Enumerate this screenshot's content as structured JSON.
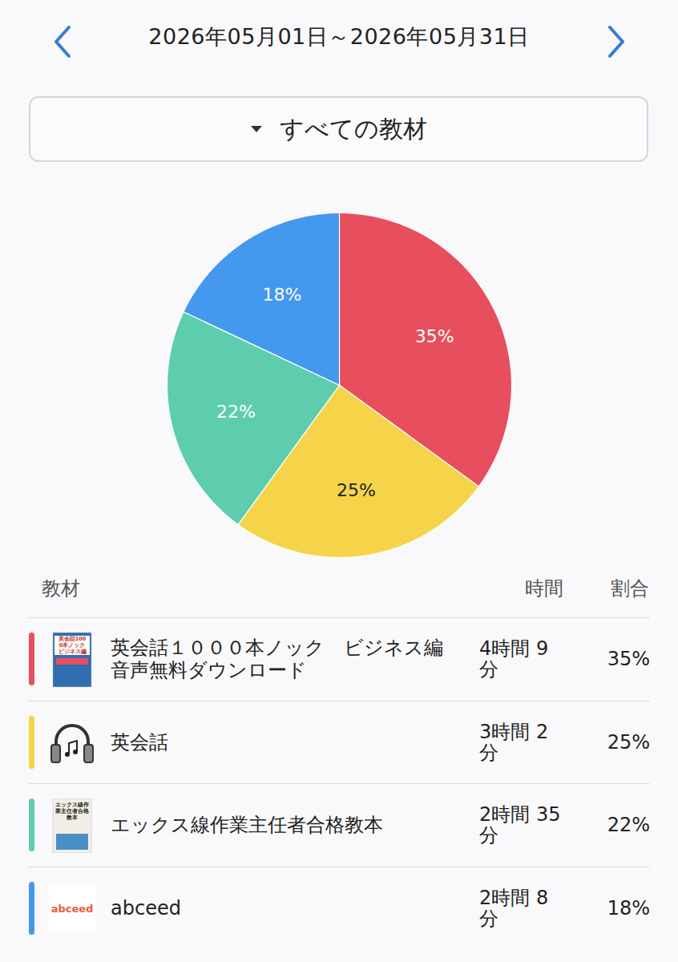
{
  "chart_data": {
    "type": "pie",
    "period": "2026年05月01日～2026年05月31日",
    "filter": "すべての教材",
    "categories": [
      "英会話１０００本ノック　ビジネス編 音声無料ダウンロード",
      "英会話",
      "エックス線作業主任者合格教本",
      "abceed"
    ],
    "values": [
      35,
      25,
      22,
      18
    ],
    "value_labels": [
      "35%",
      "25%",
      "22%",
      "18%"
    ],
    "colors": [
      "#e84f5e",
      "#f6d44a",
      "#5ecdae",
      "#4499ee"
    ],
    "data_labels": true,
    "table_headers": [
      "教材",
      "時間",
      "割合"
    ],
    "durations": [
      "4時間 9分",
      "3時間 2分",
      "2時間 35分",
      "2時間 8分"
    ],
    "icon_texts": [
      "英会話1000本ノック ビジネス編",
      null,
      "エックス線作業主任者合格教本",
      "abceed"
    ]
  }
}
